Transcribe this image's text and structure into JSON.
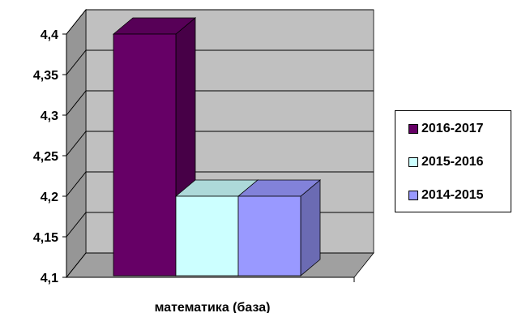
{
  "chart_data": {
    "type": "bar",
    "categories": [
      "математика (база)"
    ],
    "series": [
      {
        "name": "2016-2017",
        "values": [
          4.4
        ],
        "color": "#660066"
      },
      {
        "name": "2015-2016",
        "values": [
          4.2
        ],
        "color": "#ccffff"
      },
      {
        "name": "2014-2015",
        "values": [
          4.2
        ],
        "color": "#9999ff"
      }
    ],
    "ylim": [
      4.1,
      4.4
    ],
    "yticks": [
      "4,1",
      "4,15",
      "4,2",
      "4,25",
      "4,3",
      "4,35",
      "4,4"
    ],
    "grid": true,
    "three_d": true,
    "legend_position": "right"
  },
  "colors": {
    "wall": "#c0c0c0",
    "side_wall": "#969696",
    "floor": "#a0a0a0"
  }
}
